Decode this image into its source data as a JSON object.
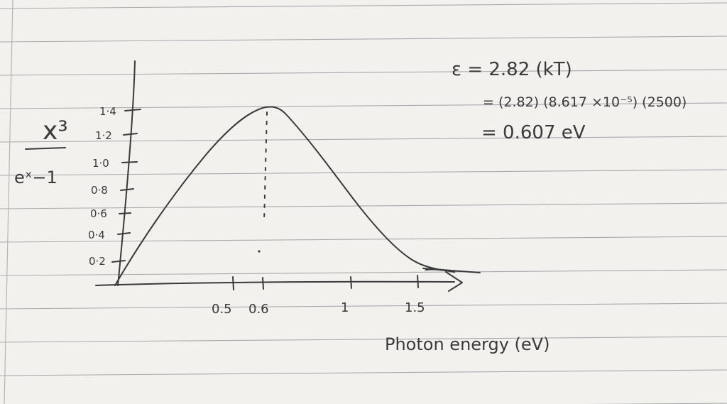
{
  "photo": {
    "paper_color": "#f2f1ee",
    "ink_color": "#3a3a3c",
    "rule_color": "#a9a9ad",
    "margin_color": "#b9b3b0"
  },
  "sketch": {
    "y_axis_label_top": "x³",
    "y_axis_label_bottom": "eˣ−1",
    "x_axis_label": "Photon energy (eV)",
    "y_ticks": [
      "1·4",
      "1·2",
      "1·0",
      "0·8",
      "0·6",
      "0·4",
      "0·2"
    ],
    "x_ticks": [
      "0.5",
      "0.6",
      "1",
      "1.5"
    ]
  },
  "equations": {
    "line1": "ε = 2.82 (kT)",
    "line2": "= (2.82) (8.617 ×10⁻⁵) (2500)",
    "line3": "= 0.607 eV"
  }
}
